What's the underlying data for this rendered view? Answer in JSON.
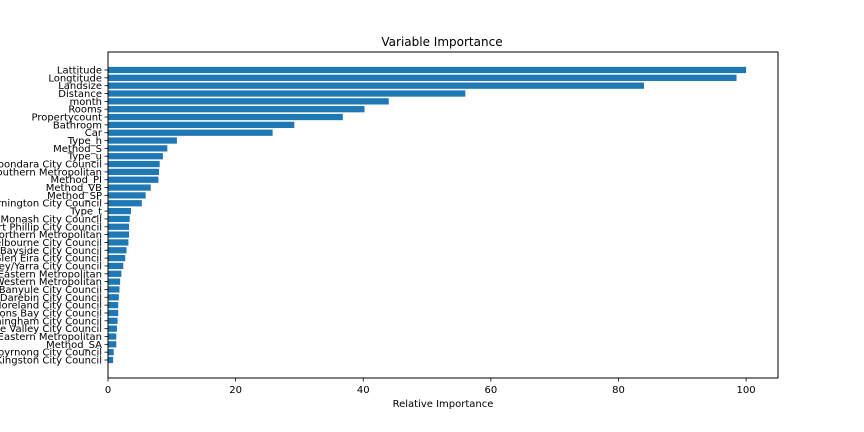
{
  "chart_data": {
    "type": "bar",
    "orientation": "horizontal",
    "title": "Variable Importance",
    "xlabel": "Relative Importance",
    "ylabel": "",
    "xlim": [
      0,
      105
    ],
    "xticks": [
      0,
      20,
      40,
      60,
      80,
      100
    ],
    "grid": false,
    "legend": "none",
    "bar_color": "#1f77b4",
    "categories": [
      "Lattitude",
      "Longtitude",
      "Landsize",
      "Distance",
      "month",
      "Rooms",
      "Propertycount",
      "Bathroom",
      "Car",
      "Type_h",
      "Method_S",
      "Type_u",
      "Moonee Valley/Boroondara City Council",
      "Southern Metropolitan",
      "Method_PI",
      "Method_VB",
      "Method_SP",
      "Manningham/Kingston Yarra/Mornington City Council",
      "Type_t",
      "Monash City Council",
      "Port Phillip City Council",
      "Northern Metropolitan",
      "Melbourne City Council",
      "Bayside City Council",
      "Glen Eira City Council",
      "Stonnington/Moonee Valley/Yarra City Council",
      "Eastern Metropolitan",
      "Western Metropolitan",
      "Banyule City Council",
      "Darebin City Council",
      "Moreland City Council",
      "Hobsons Bay City Council",
      "Boroondara/Manningham City Council",
      "Moonee Valley City Council",
      "South-Eastern Metropolitan",
      "Method_SA",
      "Maribyrnong City Council",
      "Kingston City Council"
    ],
    "values": [
      100,
      98.5,
      84,
      56,
      44,
      40.2,
      36.8,
      29.2,
      25.8,
      10.8,
      9.3,
      8.6,
      8.1,
      8.0,
      7.9,
      6.7,
      5.9,
      5.3,
      3.6,
      3.4,
      3.3,
      3.3,
      3.2,
      2.9,
      2.7,
      2.4,
      2.1,
      1.9,
      1.8,
      1.7,
      1.6,
      1.6,
      1.5,
      1.4,
      1.3,
      1.3,
      0.9,
      0.8
    ]
  }
}
